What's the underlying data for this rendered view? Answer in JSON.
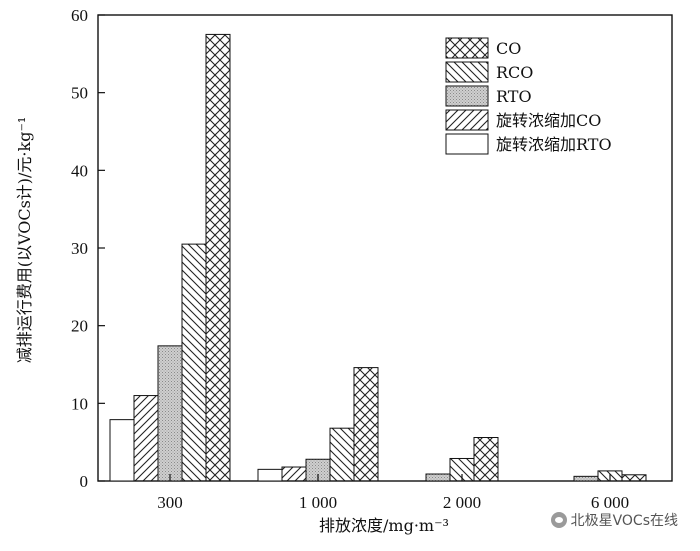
{
  "chart_data": {
    "type": "bar",
    "xlabel": "排放浓度/mg·m⁻³",
    "ylabel": "减排运行费用(以VOCs计)/元·kg⁻¹",
    "ylim": [
      0,
      60
    ],
    "yticks": [
      0,
      10,
      20,
      30,
      40,
      50,
      60
    ],
    "categories": [
      "300",
      "1 000",
      "2 000",
      "6 000"
    ],
    "series": [
      {
        "name": "旋转浓缩加RTO",
        "pattern": "blank",
        "values": [
          7.9,
          1.5,
          null,
          null
        ]
      },
      {
        "name": "旋转浓缩加CO",
        "pattern": "diag-right",
        "values": [
          11.0,
          1.8,
          null,
          null
        ]
      },
      {
        "name": "RTO",
        "pattern": "dots",
        "values": [
          17.4,
          2.8,
          0.9,
          0.6
        ]
      },
      {
        "name": "RCO",
        "pattern": "diag-left",
        "values": [
          30.5,
          6.8,
          2.9,
          1.3
        ]
      },
      {
        "name": "CO",
        "pattern": "cross",
        "values": [
          57.5,
          14.6,
          5.6,
          0.8
        ]
      }
    ],
    "legend": {
      "placement": "top-right",
      "order": [
        "CO",
        "RCO",
        "RTO",
        "旋转浓缩加CO",
        "旋转浓缩加RTO"
      ]
    },
    "grid": false
  },
  "watermark": {
    "text": "北极星VOCs在线"
  }
}
